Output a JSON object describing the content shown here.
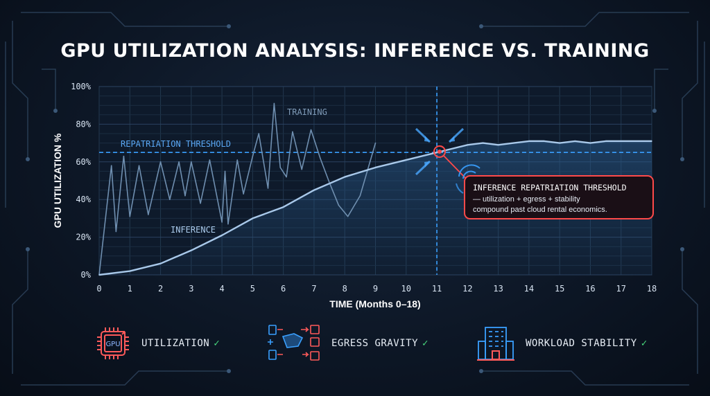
{
  "title": "GPU UTILIZATION ANALYSIS: INFERENCE VS. TRAINING",
  "chart_data": {
    "type": "line",
    "xlabel": "TIME (Months 0–18)",
    "ylabel": "GPU UTILIZATION %",
    "xlim": [
      0,
      18
    ],
    "ylim": [
      0,
      100
    ],
    "x_ticks": [
      "0",
      "1",
      "2",
      "3",
      "4",
      "5",
      "6",
      "7",
      "8",
      "9",
      "10",
      "11",
      "12",
      "13",
      "14",
      "15",
      "16",
      "17",
      "18"
    ],
    "y_ticks": [
      "0%",
      "20%",
      "40%",
      "60%",
      "80%",
      "100%"
    ],
    "grid": true,
    "series": [
      {
        "name": "TRAINING",
        "color": "#6f8fb0",
        "x": [
          0,
          0.4,
          0.55,
          0.8,
          1.0,
          1.3,
          1.6,
          2.0,
          2.3,
          2.6,
          2.8,
          3.0,
          3.3,
          3.6,
          4.0,
          4.1,
          4.2,
          4.5,
          4.7,
          5.0,
          5.2,
          5.5,
          5.7,
          5.9,
          6.1,
          6.3,
          6.6,
          6.9,
          7.2,
          7.5,
          7.8,
          8.1,
          8.5,
          9.0
        ],
        "y": [
          0,
          58,
          23,
          63,
          31,
          58,
          32,
          60,
          40,
          60,
          42,
          60,
          38,
          61,
          28,
          55,
          27,
          61,
          43,
          63,
          75,
          46,
          91,
          57,
          52,
          76,
          56,
          77,
          62,
          49,
          37,
          31,
          42,
          70
        ]
      },
      {
        "name": "INFERENCE",
        "color": "#a9c9ea",
        "x": [
          0,
          1,
          2,
          3,
          4,
          5,
          6,
          7,
          8,
          9,
          10,
          11,
          11.5,
          12,
          12.5,
          13,
          13.5,
          14,
          14.5,
          15,
          15.5,
          16,
          16.5,
          17,
          17.5,
          18
        ],
        "y": [
          0,
          2,
          6,
          13,
          21,
          30,
          36,
          45,
          52,
          57,
          61,
          65,
          67,
          69,
          70,
          69,
          70,
          71,
          71,
          70,
          71,
          70,
          71,
          71,
          71,
          71
        ]
      }
    ],
    "threshold": {
      "label": "REPATRIATION THRESHOLD",
      "y": 65
    },
    "crossover_x": 11,
    "annotation": {
      "title": "INFERENCE REPATRIATION THRESHOLD",
      "line1": "— utilization + egress + stability",
      "line2": "compound past cloud rental economics."
    },
    "series_labels": {
      "training": "TRAINING",
      "inference": "INFERENCE"
    }
  },
  "features": [
    {
      "label": "UTILIZATION",
      "icon": "gpu-chip-icon",
      "icon_text": "GPU",
      "check": "✓"
    },
    {
      "label": "EGRESS GRAVITY",
      "icon": "data-flow-icon",
      "check": "✓"
    },
    {
      "label": "WORKLOAD STABILITY",
      "icon": "building-icon",
      "check": "✓"
    }
  ],
  "colors": {
    "accent": "#3aa0ff",
    "alert": "#ff4a4a",
    "check": "#4ade80",
    "grid": "#2b4260"
  }
}
